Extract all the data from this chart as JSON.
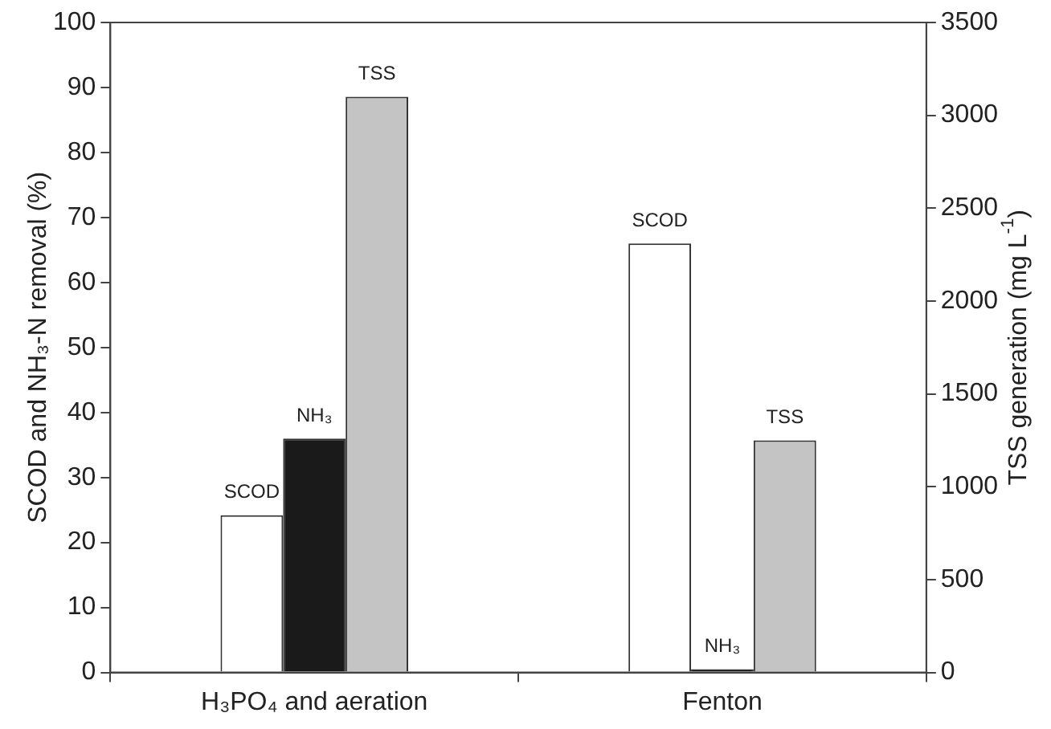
{
  "chart_data": {
    "type": "bar",
    "categories": [
      "H₃PO₄ and aeration",
      "Fenton"
    ],
    "ylabel": "SCOD and NH₃-N removal (%)",
    "y2label": "TSS generation (mg L$^{-1}$)",
    "series": [
      {
        "name": "SCOD",
        "color": "#ffffff",
        "values": [
          24.2,
          66
        ]
      },
      {
        "name": "NH₃",
        "color": "#1a1a1a",
        "values": [
          36,
          0.5
        ]
      },
      {
        "name": "TSS",
        "color": "#c4c4c4",
        "values": [
          3100,
          1250
        ],
        "axis": "y2"
      }
    ],
    "ylim": [
      0,
      100
    ],
    "yticks": [
      0,
      10,
      20,
      30,
      40,
      50,
      60,
      70,
      80,
      90,
      100
    ],
    "y2lim": [
      0,
      3500
    ],
    "y2ticks": [
      0,
      500,
      1000,
      1500,
      2000,
      2500,
      3000,
      3500
    ],
    "grid": false,
    "legend": false
  }
}
